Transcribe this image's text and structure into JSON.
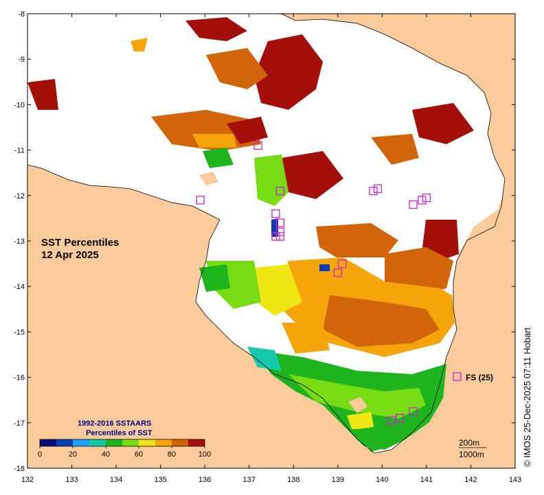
{
  "title": {
    "line1": "SST Percentiles",
    "line2": "12 Apr 2025"
  },
  "credit": "© IMOS 25-Dec-2025 07:11 Hobart",
  "axes": {
    "x_ticks": [
      "132",
      "133",
      "134",
      "135",
      "136",
      "137",
      "138",
      "139",
      "140",
      "141",
      "142",
      "143"
    ],
    "y_ticks": [
      "-8",
      "-9",
      "-10",
      "-11",
      "-12",
      "-13",
      "-14",
      "-15",
      "-16",
      "-17",
      "-18"
    ],
    "xlim": [
      132,
      143
    ],
    "ylim": [
      -18,
      -8
    ]
  },
  "colorbar": {
    "title1": "1992-2016 SSTAARS",
    "title2": "Percentiles of SST",
    "ticks": [
      "0",
      "20",
      "40",
      "60",
      "80",
      "100"
    ],
    "colors": [
      "#0a0a7a",
      "#0a3cb4",
      "#1ea0ff",
      "#14c8aa",
      "#1eb41e",
      "#78dc14",
      "#f0e614",
      "#f5a50a",
      "#d2640a",
      "#a50f0a"
    ]
  },
  "legend": {
    "float_label": "FS (25)"
  },
  "depth_labels": [
    "200m",
    "1000m"
  ],
  "colors": {
    "land": "#fbcb9b",
    "ocean_cloud": "#ffffff",
    "marker": "#d020d0"
  },
  "markers": [
    {
      "lon": 137.2,
      "lat": -10.9
    },
    {
      "lon": 135.9,
      "lat": -12.1
    },
    {
      "lon": 137.6,
      "lat": -12.4
    },
    {
      "lon": 137.7,
      "lat": -12.6
    },
    {
      "lon": 137.7,
      "lat": -12.8
    },
    {
      "lon": 137.6,
      "lat": -12.9
    },
    {
      "lon": 137.7,
      "lat": -12.9
    },
    {
      "lon": 137.7,
      "lat": -11.9
    },
    {
      "lon": 139.8,
      "lat": -11.9
    },
    {
      "lon": 139.9,
      "lat": -11.85
    },
    {
      "lon": 140.7,
      "lat": -12.2
    },
    {
      "lon": 140.9,
      "lat": -12.1
    },
    {
      "lon": 141.0,
      "lat": -12.05
    },
    {
      "lon": 139.1,
      "lat": -13.5
    },
    {
      "lon": 139.0,
      "lat": -13.7
    },
    {
      "lon": 140.2,
      "lat": -16.95
    },
    {
      "lon": 140.4,
      "lat": -16.9
    },
    {
      "lon": 140.7,
      "lat": -16.75
    }
  ]
}
